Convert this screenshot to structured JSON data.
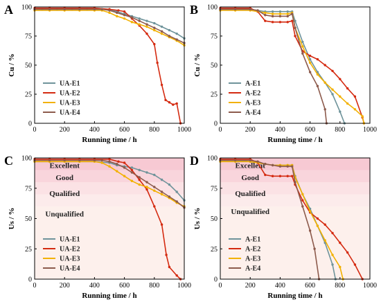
{
  "colors": {
    "E1": "#6e939a",
    "E2": "#d42a10",
    "E3": "#f2b100",
    "E4": "#8c5a4c"
  },
  "zone_colors": [
    "#f7c9d3",
    "#f9d5dc",
    "#fbe2e5",
    "#fcebeb",
    "#fdf0ec"
  ],
  "chart_data": [
    {
      "id": "A",
      "panel_label": "A",
      "type": "line",
      "xlabel": "Running time / h",
      "ylabel": "Cu / %",
      "xlim": [
        0,
        1000
      ],
      "ylim": [
        0,
        100
      ],
      "xticks": [
        0,
        200,
        400,
        600,
        800,
        1000
      ],
      "yticks": [
        0,
        25,
        50,
        75,
        100
      ],
      "legend_position": "bottom-left",
      "series": [
        {
          "name": "UA-E1",
          "key": "E1",
          "x": [
            0,
            50,
            100,
            150,
            200,
            250,
            300,
            350,
            400,
            450,
            500,
            550,
            600,
            650,
            700,
            750,
            800,
            850,
            900,
            950,
            1000
          ],
          "y": [
            98,
            98,
            98,
            98,
            98,
            98,
            98,
            98,
            98,
            98,
            97.5,
            96,
            94,
            92,
            90,
            88,
            86,
            83,
            80,
            77,
            73
          ]
        },
        {
          "name": "UA-E2",
          "key": "E2",
          "x": [
            0,
            100,
            200,
            300,
            400,
            500,
            560,
            600,
            650,
            700,
            750,
            800,
            820,
            850,
            875,
            900,
            925,
            950,
            975
          ],
          "y": [
            99,
            99,
            99,
            99,
            99,
            98,
            97,
            96,
            90,
            84,
            77,
            68,
            52,
            33,
            20,
            18,
            16,
            17,
            0
          ]
        },
        {
          "name": "UA-E3",
          "key": "E3",
          "x": [
            0,
            100,
            200,
            300,
            400,
            450,
            500,
            550,
            600,
            650,
            700,
            750,
            800,
            850,
            900,
            950,
            1000
          ],
          "y": [
            97,
            97,
            97,
            97,
            97,
            97,
            95,
            92,
            90,
            87,
            85,
            83,
            80,
            77,
            74,
            71,
            67
          ]
        },
        {
          "name": "UA-E4",
          "key": "E4",
          "x": [
            0,
            100,
            200,
            300,
            400,
            450,
            500,
            550,
            600,
            650,
            700,
            750,
            800,
            850,
            900,
            950,
            1000
          ],
          "y": [
            98,
            98,
            98,
            98,
            98,
            98,
            97,
            95,
            93,
            91,
            88,
            85,
            82,
            79,
            75,
            72,
            69
          ]
        }
      ]
    },
    {
      "id": "B",
      "panel_label": "B",
      "type": "line",
      "xlabel": "Running time / h",
      "ylabel": "Cu / %",
      "xlim": [
        0,
        1000
      ],
      "ylim": [
        0,
        100
      ],
      "xticks": [
        0,
        200,
        400,
        600,
        800,
        1000
      ],
      "yticks": [
        0,
        25,
        50,
        75,
        100
      ],
      "legend_position": "bottom-left",
      "series": [
        {
          "name": "A-E1",
          "key": "E1",
          "x": [
            0,
            100,
            200,
            250,
            300,
            350,
            400,
            450,
            480,
            500,
            550,
            600,
            650,
            700,
            750,
            800,
            830
          ],
          "y": [
            98,
            98,
            98,
            97,
            96,
            96,
            96,
            96,
            96,
            88,
            70,
            55,
            44,
            35,
            25,
            10,
            0
          ]
        },
        {
          "name": "A-E2",
          "key": "E2",
          "x": [
            0,
            100,
            200,
            250,
            300,
            350,
            400,
            450,
            480,
            500,
            550,
            600,
            650,
            700,
            750,
            800,
            850,
            900,
            950,
            960
          ],
          "y": [
            99,
            99,
            99,
            96,
            88,
            87,
            87,
            87,
            88,
            75,
            62,
            58,
            55,
            50,
            45,
            38,
            30,
            23,
            5,
            0
          ]
        },
        {
          "name": "A-E3",
          "key": "E3",
          "x": [
            0,
            100,
            200,
            300,
            350,
            400,
            450,
            480,
            500,
            550,
            600,
            650,
            700,
            750,
            800,
            850,
            900,
            950,
            960
          ],
          "y": [
            97,
            97,
            97,
            95,
            94,
            94,
            94,
            95,
            82,
            66,
            52,
            42,
            35,
            29,
            23,
            17,
            12,
            6,
            0
          ]
        },
        {
          "name": "A-E4",
          "key": "E4",
          "x": [
            0,
            100,
            200,
            250,
            300,
            350,
            400,
            450,
            480,
            500,
            550,
            600,
            650,
            700,
            710
          ],
          "y": [
            98,
            98,
            98,
            97,
            93,
            92,
            92,
            92,
            94,
            82,
            60,
            44,
            32,
            12,
            0
          ]
        }
      ]
    },
    {
      "id": "C",
      "panel_label": "C",
      "type": "line",
      "xlabel": "Running time / h",
      "ylabel": "Us / %",
      "xlim": [
        0,
        1000
      ],
      "ylim": [
        0,
        100
      ],
      "xticks": [
        0,
        200,
        400,
        600,
        800,
        1000
      ],
      "yticks": [
        0,
        25,
        50,
        75,
        100
      ],
      "legend_position": "bottom-left",
      "zones": [
        {
          "label": "Excellent",
          "from": 90,
          "to": 100
        },
        {
          "label": "Good",
          "from": 80,
          "to": 90
        },
        {
          "label": "Qualified",
          "from": 70,
          "to": 80
        },
        {
          "label": "Unqualified",
          "from": 60,
          "to": 70
        },
        {
          "label": "",
          "from": 0,
          "to": 60
        }
      ],
      "zone_labels": [
        {
          "text": "Excellent",
          "y": 94
        },
        {
          "text": "Good",
          "y": 84
        },
        {
          "text": "Qualified",
          "y": 71
        },
        {
          "text": "Unqualified",
          "y": 54
        }
      ],
      "series": [
        {
          "name": "UA-E1",
          "key": "E1",
          "x": [
            0,
            100,
            200,
            300,
            400,
            500,
            550,
            600,
            650,
            700,
            750,
            800,
            850,
            900,
            950,
            1000
          ],
          "y": [
            97,
            97,
            97,
            97,
            97,
            96,
            94,
            93,
            92,
            90,
            88,
            86,
            82,
            78,
            72,
            65
          ]
        },
        {
          "name": "UA-E2",
          "key": "E2",
          "x": [
            0,
            100,
            200,
            300,
            400,
            500,
            560,
            600,
            650,
            700,
            750,
            800,
            850,
            880,
            900,
            950,
            975
          ],
          "y": [
            99,
            99,
            99,
            99,
            99,
            99,
            97,
            96,
            90,
            82,
            74,
            60,
            45,
            20,
            10,
            3,
            0
          ]
        },
        {
          "name": "UA-E3",
          "key": "E3",
          "x": [
            0,
            100,
            200,
            300,
            400,
            450,
            500,
            550,
            600,
            650,
            700,
            750,
            800,
            850,
            900,
            950,
            1000
          ],
          "y": [
            97,
            97,
            97,
            97,
            97,
            96,
            93,
            89,
            85,
            81,
            78,
            76,
            73,
            70,
            67,
            63,
            60
          ]
        },
        {
          "name": "UA-E4",
          "key": "E4",
          "x": [
            0,
            100,
            200,
            300,
            400,
            450,
            500,
            550,
            600,
            650,
            700,
            750,
            800,
            850,
            900,
            950,
            1000
          ],
          "y": [
            98,
            98,
            98,
            98,
            98,
            98,
            97,
            95,
            92,
            88,
            84,
            80,
            76,
            72,
            68,
            64,
            59
          ]
        }
      ]
    },
    {
      "id": "D",
      "panel_label": "D",
      "type": "line",
      "xlabel": "Running time / h",
      "ylabel": "Us / %",
      "xlim": [
        0,
        1000
      ],
      "ylim": [
        0,
        100
      ],
      "xticks": [
        0,
        200,
        400,
        600,
        800,
        1000
      ],
      "yticks": [
        0,
        25,
        50,
        75,
        100
      ],
      "legend_position": "bottom-left",
      "zones": [
        {
          "label": "Excellent",
          "from": 90,
          "to": 100
        },
        {
          "label": "Good",
          "from": 80,
          "to": 90
        },
        {
          "label": "Qualified",
          "from": 70,
          "to": 80
        },
        {
          "label": "Unqualified",
          "from": 60,
          "to": 70
        },
        {
          "label": "",
          "from": 0,
          "to": 60
        }
      ],
      "zone_labels": [
        {
          "text": "Excellent",
          "y": 94
        },
        {
          "text": "Good",
          "y": 84
        },
        {
          "text": "Qualified",
          "y": 71
        },
        {
          "text": "Unqualified",
          "y": 56
        }
      ],
      "series": [
        {
          "name": "A-E1",
          "key": "E1",
          "x": [
            0,
            100,
            200,
            250,
            300,
            350,
            400,
            450,
            480,
            500,
            550,
            600,
            650,
            700,
            750,
            770
          ],
          "y": [
            98,
            98,
            97,
            96,
            95,
            94,
            94,
            94,
            94,
            85,
            70,
            58,
            44,
            30,
            12,
            0
          ]
        },
        {
          "name": "A-E2",
          "key": "E2",
          "x": [
            0,
            100,
            200,
            250,
            300,
            350,
            400,
            450,
            480,
            500,
            550,
            600,
            650,
            700,
            750,
            800,
            850,
            900,
            950
          ],
          "y": [
            99,
            99,
            99,
            96,
            86,
            85,
            85,
            85,
            85,
            78,
            65,
            55,
            50,
            45,
            38,
            30,
            22,
            12,
            0
          ]
        },
        {
          "name": "A-E3",
          "key": "E3",
          "x": [
            0,
            100,
            200,
            300,
            350,
            400,
            450,
            480,
            500,
            550,
            600,
            650,
            700,
            750,
            800,
            820
          ],
          "y": [
            97,
            97,
            97,
            95,
            94,
            94,
            94,
            94,
            84,
            70,
            56,
            44,
            32,
            20,
            10,
            0
          ]
        },
        {
          "name": "A-E4",
          "key": "E4",
          "x": [
            0,
            100,
            200,
            250,
            300,
            350,
            400,
            450,
            480,
            500,
            550,
            600,
            630,
            660
          ],
          "y": [
            98,
            98,
            98,
            97,
            95,
            94,
            93,
            93,
            93,
            80,
            60,
            40,
            25,
            0
          ]
        }
      ]
    }
  ]
}
